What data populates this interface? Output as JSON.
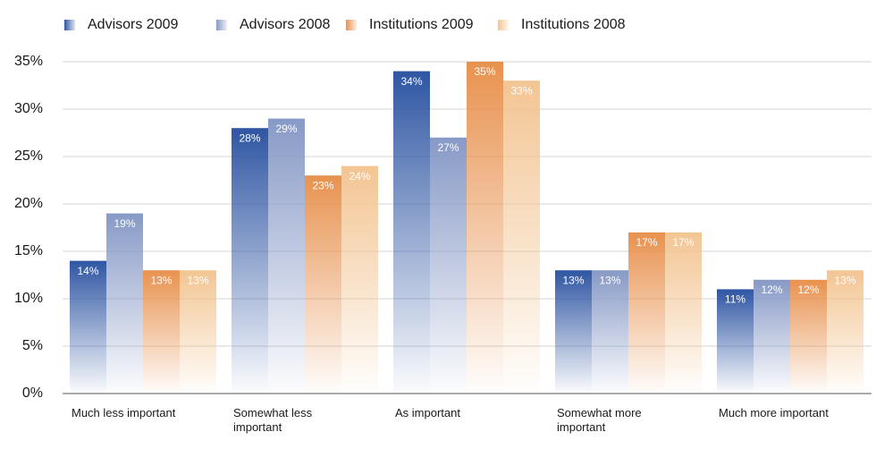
{
  "chart_data": {
    "type": "bar",
    "categories": [
      "Much less important",
      "Somewhat less important",
      "As important",
      "Somewhat more important",
      "Much more important"
    ],
    "series": [
      {
        "name": "Advisors 2009",
        "color": "#2f56a3",
        "values": [
          14,
          28,
          34,
          13,
          11
        ],
        "value_labels": [
          "14%",
          "28%",
          "34%",
          "13%",
          "11%"
        ]
      },
      {
        "name": "Advisors 2008",
        "color": "#8799c6",
        "values": [
          19,
          29,
          27,
          13,
          12
        ],
        "value_labels": [
          "19%",
          "29%",
          "27%",
          "13%",
          "12%"
        ]
      },
      {
        "name": "Institutions 2009",
        "color": "#e8924f",
        "values": [
          13,
          23,
          35,
          17,
          12
        ],
        "value_labels": [
          "13%",
          "23%",
          "35%",
          "17%",
          "12%"
        ]
      },
      {
        "name": "Institutions 2008",
        "color": "#f3c593",
        "values": [
          13,
          24,
          33,
          17,
          13
        ],
        "value_labels": [
          "13%",
          "24%",
          "33%",
          "17%",
          "13%"
        ]
      }
    ],
    "ylim": [
      0,
      35
    ],
    "yticks": [
      {
        "value": 0,
        "label": "0%"
      },
      {
        "value": 5,
        "label": "5%"
      },
      {
        "value": 10,
        "label": "10%"
      },
      {
        "value": 15,
        "label": "15%"
      },
      {
        "value": 20,
        "label": "20%"
      },
      {
        "value": 25,
        "label": "25%"
      },
      {
        "value": 30,
        "label": "30%"
      },
      {
        "value": 35,
        "label": "35%"
      }
    ],
    "grid": true
  }
}
